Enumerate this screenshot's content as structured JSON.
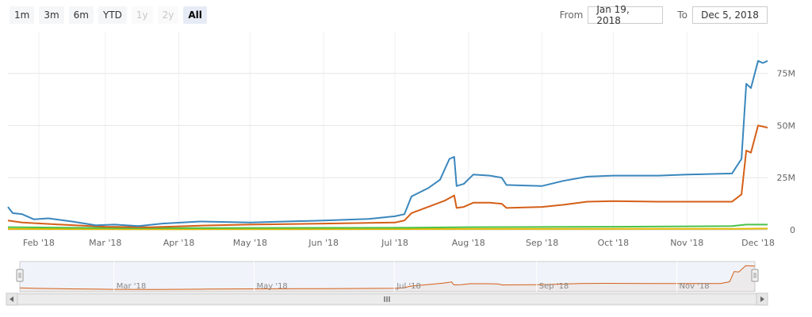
{
  "range_selector": {
    "buttons": [
      {
        "label": "1m",
        "state": "normal"
      },
      {
        "label": "3m",
        "state": "normal"
      },
      {
        "label": "6m",
        "state": "normal"
      },
      {
        "label": "YTD",
        "state": "normal"
      },
      {
        "label": "1y",
        "state": "disabled"
      },
      {
        "label": "2y",
        "state": "disabled"
      },
      {
        "label": "All",
        "state": "selected"
      }
    ]
  },
  "date_inputs": {
    "from_label": "From",
    "from_value": "Jan 19, 2018",
    "to_label": "To",
    "to_value": "Dec 5, 2018"
  },
  "chart_data": {
    "type": "line",
    "x_range": [
      "2018-01-19",
      "2018-12-05"
    ],
    "x_ticks": [
      "Feb '18",
      "Mar '18",
      "Apr '18",
      "May '18",
      "Jun '18",
      "Jul '18",
      "Aug '18",
      "Sep '18",
      "Oct '18",
      "Nov '18",
      "Dec '18"
    ],
    "y_ticks": [
      "0",
      "25M",
      "50M",
      "75M"
    ],
    "y_tick_values": [
      0,
      25000000,
      50000000,
      75000000
    ],
    "ylim": [
      0,
      95000000
    ],
    "grid": true,
    "series": [
      {
        "color": "#3a87bd",
        "points": [
          [
            "2018-01-19",
            11000000
          ],
          [
            "2018-01-21",
            8000000
          ],
          [
            "2018-01-25",
            7500000
          ],
          [
            "2018-01-30",
            5000000
          ],
          [
            "2018-02-05",
            5500000
          ],
          [
            "2018-02-15",
            4000000
          ],
          [
            "2018-02-25",
            2200000
          ],
          [
            "2018-03-05",
            2500000
          ],
          [
            "2018-03-15",
            1800000
          ],
          [
            "2018-03-25",
            3000000
          ],
          [
            "2018-04-10",
            4000000
          ],
          [
            "2018-05-01",
            3500000
          ],
          [
            "2018-06-01",
            4500000
          ],
          [
            "2018-06-20",
            5200000
          ],
          [
            "2018-07-01",
            6500000
          ],
          [
            "2018-07-05",
            7500000
          ],
          [
            "2018-07-08",
            16000000
          ],
          [
            "2018-07-15",
            20000000
          ],
          [
            "2018-07-20",
            24000000
          ],
          [
            "2018-07-24",
            34000000
          ],
          [
            "2018-07-26",
            35000000
          ],
          [
            "2018-07-27",
            21000000
          ],
          [
            "2018-07-30",
            22000000
          ],
          [
            "2018-08-03",
            26500000
          ],
          [
            "2018-08-10",
            26000000
          ],
          [
            "2018-08-15",
            25000000
          ],
          [
            "2018-08-17",
            21500000
          ],
          [
            "2018-09-01",
            21000000
          ],
          [
            "2018-09-10",
            23500000
          ],
          [
            "2018-09-20",
            25500000
          ],
          [
            "2018-10-01",
            26000000
          ],
          [
            "2018-10-20",
            26000000
          ],
          [
            "2018-11-01",
            26500000
          ],
          [
            "2018-11-20",
            27000000
          ],
          [
            "2018-11-24",
            34000000
          ],
          [
            "2018-11-26",
            70000000
          ],
          [
            "2018-11-28",
            68000000
          ],
          [
            "2018-12-01",
            81000000
          ],
          [
            "2018-12-03",
            80000000
          ],
          [
            "2018-12-05",
            81000000
          ]
        ]
      },
      {
        "color": "#d45f18",
        "points": [
          [
            "2018-01-19",
            4500000
          ],
          [
            "2018-01-25",
            3500000
          ],
          [
            "2018-02-10",
            2500000
          ],
          [
            "2018-03-01",
            1500000
          ],
          [
            "2018-03-20",
            1200000
          ],
          [
            "2018-04-10",
            2000000
          ],
          [
            "2018-05-01",
            2500000
          ],
          [
            "2018-06-01",
            3000000
          ],
          [
            "2018-07-01",
            3500000
          ],
          [
            "2018-07-05",
            4500000
          ],
          [
            "2018-07-08",
            8000000
          ],
          [
            "2018-07-15",
            11000000
          ],
          [
            "2018-07-22",
            14000000
          ],
          [
            "2018-07-26",
            16500000
          ],
          [
            "2018-07-27",
            10500000
          ],
          [
            "2018-07-30",
            11000000
          ],
          [
            "2018-08-03",
            13000000
          ],
          [
            "2018-08-10",
            13000000
          ],
          [
            "2018-08-15",
            12500000
          ],
          [
            "2018-08-17",
            10500000
          ],
          [
            "2018-09-01",
            11000000
          ],
          [
            "2018-09-10",
            12000000
          ],
          [
            "2018-09-20",
            13500000
          ],
          [
            "2018-10-01",
            13800000
          ],
          [
            "2018-10-20",
            13500000
          ],
          [
            "2018-11-01",
            13500000
          ],
          [
            "2018-11-20",
            13500000
          ],
          [
            "2018-11-24",
            17000000
          ],
          [
            "2018-11-26",
            38000000
          ],
          [
            "2018-11-28",
            37000000
          ],
          [
            "2018-12-01",
            50000000
          ],
          [
            "2018-12-03",
            49500000
          ],
          [
            "2018-12-05",
            49000000
          ]
        ]
      },
      {
        "color": "#4bc24b",
        "points": [
          [
            "2018-01-19",
            1300000
          ],
          [
            "2018-02-15",
            1000000
          ],
          [
            "2018-03-15",
            800000
          ],
          [
            "2018-05-01",
            900000
          ],
          [
            "2018-07-01",
            1000000
          ],
          [
            "2018-08-01",
            1300000
          ],
          [
            "2018-10-01",
            1500000
          ],
          [
            "2018-11-20",
            1800000
          ],
          [
            "2018-11-26",
            2500000
          ],
          [
            "2018-12-05",
            2500000
          ]
        ]
      },
      {
        "color": "#e6b800",
        "points": [
          [
            "2018-01-19",
            400000
          ],
          [
            "2018-04-01",
            300000
          ],
          [
            "2018-08-01",
            400000
          ],
          [
            "2018-11-20",
            500000
          ],
          [
            "2018-12-05",
            600000
          ]
        ]
      }
    ],
    "navigator": {
      "x_ticks": [
        "Mar '18",
        "May '18",
        "Jul '18",
        "Sep '18",
        "Nov '18"
      ],
      "series_color": "#d45f18"
    }
  }
}
